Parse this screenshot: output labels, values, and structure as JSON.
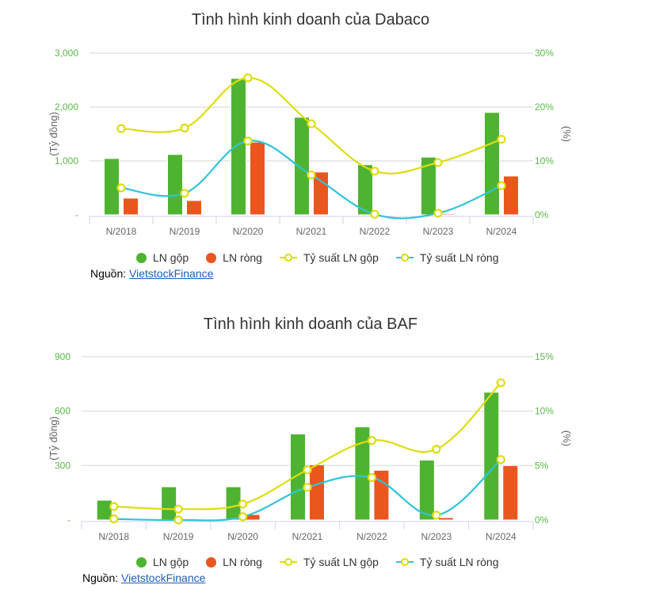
{
  "colors": {
    "gross_profit": "#4fb332",
    "net_profit": "#ea561e",
    "gross_margin": "#dddd10",
    "net_margin": "#30c4d8",
    "axis_text": "#59b949",
    "grid": "#e3e3e3"
  },
  "legend": {
    "gross_profit": "LN gộp",
    "net_profit": "LN ròng",
    "gross_margin": "Tỷ suất LN gộp",
    "net_margin": "Tỷ suất LN ròng"
  },
  "source": {
    "label": "Nguồn:",
    "link": "VietstockFinance"
  },
  "chart_data": [
    {
      "type": "bar",
      "title": "Tình hình kinh doanh của Dabaco",
      "categories": [
        "N/2018",
        "N/2019",
        "N/2020",
        "N/2021",
        "N/2022",
        "N/2023",
        "N/2024"
      ],
      "ylabel": "(Tỷ đồng)",
      "y2label": "(%)",
      "ylim": [
        0,
        3000
      ],
      "y2lim": [
        0,
        30
      ],
      "yticks": [
        "-",
        "1,000",
        "2,000",
        "3,000"
      ],
      "y2ticks": [
        "0%",
        "10%",
        "20%",
        "30%"
      ],
      "grid": true,
      "legend_position": "bottom",
      "series": [
        {
          "name": "LN gộp",
          "kind": "bar",
          "axis": "left",
          "values": [
            1045,
            1120,
            2530,
            1810,
            930,
            1070,
            1900
          ]
        },
        {
          "name": "LN ròng",
          "kind": "bar",
          "axis": "left",
          "values": [
            310,
            265,
            1350,
            795,
            5,
            20,
            720
          ]
        },
        {
          "name": "Tỷ suất LN gộp",
          "kind": "line",
          "axis": "right",
          "values": [
            16.0,
            16.1,
            25.4,
            16.9,
            8.1,
            9.7,
            14.0
          ]
        },
        {
          "name": "Tỷ suất LN ròng",
          "kind": "line",
          "axis": "right",
          "values": [
            5.0,
            4.0,
            13.7,
            7.4,
            0.1,
            0.3,
            5.4
          ]
        }
      ]
    },
    {
      "type": "bar",
      "title": "Tình hình kinh doanh của BAF",
      "categories": [
        "N/2018",
        "N/2019",
        "N/2020",
        "N/2021",
        "N/2022",
        "N/2023",
        "N/2024"
      ],
      "ylabel": "(Tỷ đồng)",
      "y2label": "(%)",
      "ylim": [
        0,
        900
      ],
      "y2lim": [
        0,
        15
      ],
      "yticks": [
        "-",
        "300",
        "600",
        "900"
      ],
      "y2ticks": [
        "0%",
        "5%",
        "10%",
        "15%"
      ],
      "grid": true,
      "legend_position": "bottom",
      "series": [
        {
          "name": "LN gộp",
          "kind": "bar",
          "axis": "left",
          "values": [
            109,
            183,
            183,
            474,
            513,
            330,
            704
          ]
        },
        {
          "name": "LN ròng",
          "kind": "bar",
          "axis": "left",
          "values": [
            4,
            3,
            30,
            304,
            274,
            13,
            300
          ]
        },
        {
          "name": "Tỷ suất LN gộp",
          "kind": "line",
          "axis": "right",
          "values": [
            1.24,
            1.0,
            1.46,
            4.6,
            7.3,
            6.5,
            12.6
          ]
        },
        {
          "name": "Tỷ suất LN ròng",
          "kind": "line",
          "axis": "right",
          "values": [
            0.1,
            0.0,
            0.3,
            3.0,
            3.9,
            0.44,
            5.55
          ]
        }
      ]
    }
  ]
}
